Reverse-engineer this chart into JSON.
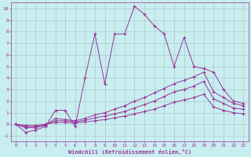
{
  "background_color": "#c8eef0",
  "grid_color": "#b0c8c8",
  "line_color": "#993399",
  "xlim": [
    -0.5,
    23.5
  ],
  "ylim": [
    -1.5,
    10.5
  ],
  "xticks": [
    0,
    1,
    2,
    3,
    4,
    5,
    6,
    7,
    8,
    9,
    10,
    11,
    12,
    13,
    14,
    15,
    16,
    17,
    18,
    19,
    20,
    21,
    22,
    23
  ],
  "yticks": [
    -1,
    0,
    1,
    2,
    3,
    4,
    5,
    6,
    7,
    8,
    9,
    10
  ],
  "xlabel": "Windchill (Refroidissement éolien,°C)",
  "main_x": [
    0,
    1,
    2,
    3,
    4,
    5,
    6,
    7,
    8,
    9,
    10,
    11,
    12,
    13,
    14,
    15,
    16,
    17,
    18,
    19,
    20,
    21,
    22,
    23
  ],
  "main_y": [
    0,
    -0.7,
    -0.5,
    -0.2,
    1.2,
    1.2,
    -0.2,
    4.0,
    7.8,
    3.5,
    7.8,
    7.8,
    10.2,
    9.5,
    8.5,
    7.8,
    5.0,
    7.5,
    5.0,
    4.8,
    4.5,
    3.0,
    2.0,
    1.8
  ],
  "line1_x": [
    0,
    1,
    2,
    3,
    4,
    5,
    6,
    7,
    8,
    9,
    10,
    11,
    12,
    13,
    14,
    15,
    16,
    17,
    18,
    19,
    20,
    21,
    22,
    23
  ],
  "line1_y": [
    0,
    -0.3,
    -0.3,
    -0.1,
    0.5,
    0.4,
    0.3,
    0.5,
    0.8,
    1.0,
    1.3,
    1.6,
    2.0,
    2.3,
    2.7,
    3.1,
    3.5,
    3.8,
    4.1,
    4.5,
    2.8,
    2.3,
    1.8,
    1.6
  ],
  "line2_x": [
    0,
    1,
    2,
    3,
    4,
    5,
    6,
    7,
    8,
    9,
    10,
    11,
    12,
    13,
    14,
    15,
    16,
    17,
    18,
    19,
    20,
    21,
    22,
    23
  ],
  "line2_y": [
    0,
    -0.2,
    -0.2,
    -0.05,
    0.3,
    0.3,
    0.2,
    0.35,
    0.55,
    0.7,
    0.9,
    1.1,
    1.4,
    1.7,
    2.0,
    2.4,
    2.8,
    3.0,
    3.3,
    3.7,
    2.2,
    1.8,
    1.4,
    1.3
  ],
  "line3_x": [
    0,
    1,
    2,
    3,
    4,
    5,
    6,
    7,
    8,
    9,
    10,
    11,
    12,
    13,
    14,
    15,
    16,
    17,
    18,
    19,
    20,
    21,
    22,
    23
  ],
  "line3_y": [
    0,
    -0.1,
    -0.1,
    0.0,
    0.15,
    0.15,
    0.1,
    0.2,
    0.3,
    0.4,
    0.55,
    0.7,
    0.9,
    1.1,
    1.3,
    1.6,
    1.9,
    2.1,
    2.3,
    2.6,
    1.5,
    1.2,
    1.0,
    0.9
  ]
}
